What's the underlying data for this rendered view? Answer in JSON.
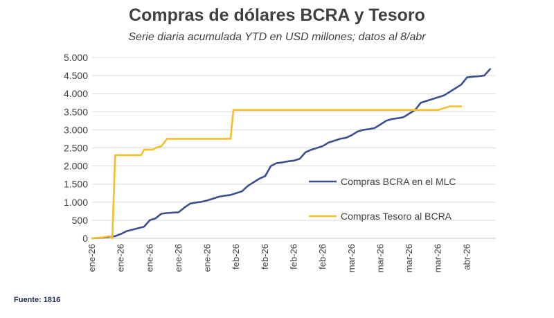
{
  "chart_data": {
    "type": "line",
    "title": "Compras de dólares BCRA y Tesoro",
    "subtitle": "Serie diaria acumulada YTD en USD millones; datos al 8/abr",
    "source": "Fuente: 1816",
    "xlabel": "",
    "ylabel": "",
    "ylim": [
      0,
      5000
    ],
    "y_ticks": [
      0,
      500,
      1000,
      1500,
      2000,
      2500,
      3000,
      3500,
      4000,
      4500,
      5000
    ],
    "y_tick_labels": [
      "0",
      "500",
      "1.000",
      "1.500",
      "2.000",
      "2.500",
      "3.000",
      "3.500",
      "4.000",
      "4.500",
      "5.000"
    ],
    "x_range": [
      0,
      70
    ],
    "x_tick_positions": [
      0,
      5,
      10,
      15,
      20,
      25,
      30,
      35,
      40,
      45,
      50,
      55,
      60,
      65
    ],
    "x_tick_labels": [
      "ene-26",
      "ene-26",
      "ene-26",
      "ene-26",
      "ene-26",
      "feb-26",
      "feb-26",
      "feb-26",
      "feb-26",
      "mar-26",
      "mar-26",
      "mar-26",
      "mar-26",
      "abr-26"
    ],
    "grid": true,
    "legend_position": "right",
    "series": [
      {
        "name": "Compras BCRA en el MLC",
        "color": "#3b4f8c",
        "x": [
          0,
          2,
          3,
          4,
          5,
          6,
          7,
          8,
          9,
          10,
          11,
          12,
          13,
          14,
          15,
          16,
          17,
          18,
          19,
          20,
          21,
          22,
          23,
          24,
          25,
          26,
          27,
          28,
          29,
          30,
          31,
          32,
          33,
          34,
          35,
          36,
          37,
          38,
          39,
          40,
          41,
          42,
          43,
          44,
          45,
          46,
          47,
          48,
          49,
          50,
          51,
          52,
          53,
          54,
          55,
          56,
          57,
          58,
          59,
          60,
          61,
          62,
          63,
          64,
          65,
          66,
          67,
          68,
          69
        ],
        "values": [
          0,
          20,
          40,
          60,
          120,
          200,
          240,
          280,
          320,
          500,
          550,
          680,
          700,
          710,
          720,
          850,
          960,
          990,
          1010,
          1050,
          1100,
          1150,
          1180,
          1200,
          1250,
          1300,
          1450,
          1550,
          1650,
          1720,
          2000,
          2080,
          2100,
          2130,
          2150,
          2200,
          2380,
          2450,
          2500,
          2550,
          2650,
          2700,
          2750,
          2780,
          2850,
          2950,
          3000,
          3020,
          3050,
          3150,
          3250,
          3300,
          3320,
          3350,
          3450,
          3550,
          3750,
          3800,
          3850,
          3900,
          3950,
          4050,
          4150,
          4250,
          4450,
          4470,
          4480,
          4500,
          4680
        ]
      },
      {
        "name": "Compras Tesoro al BCRA",
        "color": "#f5bf2a",
        "x": [
          0,
          2,
          3,
          3.5,
          4,
          5,
          6,
          7,
          8,
          8.5,
          9,
          10,
          10.5,
          11,
          12,
          13,
          14,
          15,
          20,
          24,
          24.5,
          25,
          30,
          35,
          40,
          45,
          50,
          55,
          60,
          61,
          62,
          63,
          64
        ],
        "values": [
          0,
          30,
          60,
          0,
          2300,
          2300,
          2300,
          2300,
          2300,
          2300,
          2450,
          2450,
          2450,
          2500,
          2550,
          2750,
          2750,
          2750,
          2750,
          2750,
          3550,
          3550,
          3550,
          3550,
          3550,
          3550,
          3550,
          3550,
          3550,
          3600,
          3650,
          3650,
          3650
        ]
      }
    ]
  }
}
